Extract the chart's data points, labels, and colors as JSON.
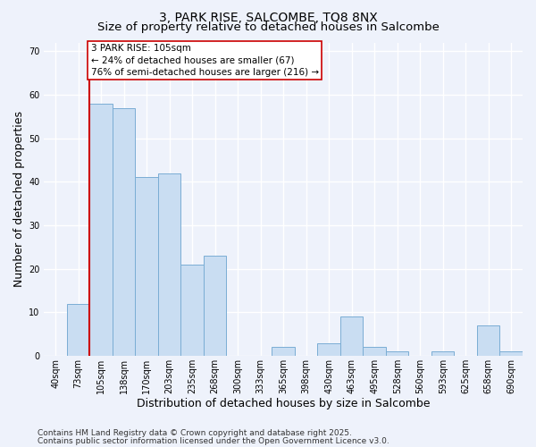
{
  "title1": "3, PARK RISE, SALCOMBE, TQ8 8NX",
  "title2": "Size of property relative to detached houses in Salcombe",
  "xlabel": "Distribution of detached houses by size in Salcombe",
  "ylabel": "Number of detached properties",
  "categories": [
    "40sqm",
    "73sqm",
    "105sqm",
    "138sqm",
    "170sqm",
    "203sqm",
    "235sqm",
    "268sqm",
    "300sqm",
    "333sqm",
    "365sqm",
    "398sqm",
    "430sqm",
    "463sqm",
    "495sqm",
    "528sqm",
    "560sqm",
    "593sqm",
    "625sqm",
    "658sqm",
    "690sqm"
  ],
  "values": [
    0,
    12,
    58,
    57,
    41,
    42,
    21,
    23,
    0,
    0,
    2,
    0,
    3,
    9,
    2,
    1,
    0,
    1,
    0,
    7,
    1
  ],
  "bar_color": "#c9ddf2",
  "bar_edge_color": "#7aadd4",
  "highlight_index": 2,
  "highlight_line_color": "#cc0000",
  "annotation_text": "3 PARK RISE: 105sqm\n← 24% of detached houses are smaller (67)\n76% of semi-detached houses are larger (216) →",
  "annotation_box_color": "#ffffff",
  "annotation_box_edge_color": "#cc0000",
  "ylim": [
    0,
    72
  ],
  "yticks": [
    0,
    10,
    20,
    30,
    40,
    50,
    60,
    70
  ],
  "background_color": "#eef2fb",
  "grid_color": "#ffffff",
  "footer1": "Contains HM Land Registry data © Crown copyright and database right 2025.",
  "footer2": "Contains public sector information licensed under the Open Government Licence v3.0.",
  "title_fontsize": 10,
  "subtitle_fontsize": 9.5,
  "axis_label_fontsize": 9,
  "tick_fontsize": 7,
  "footer_fontsize": 6.5,
  "annotation_fontsize": 7.5
}
